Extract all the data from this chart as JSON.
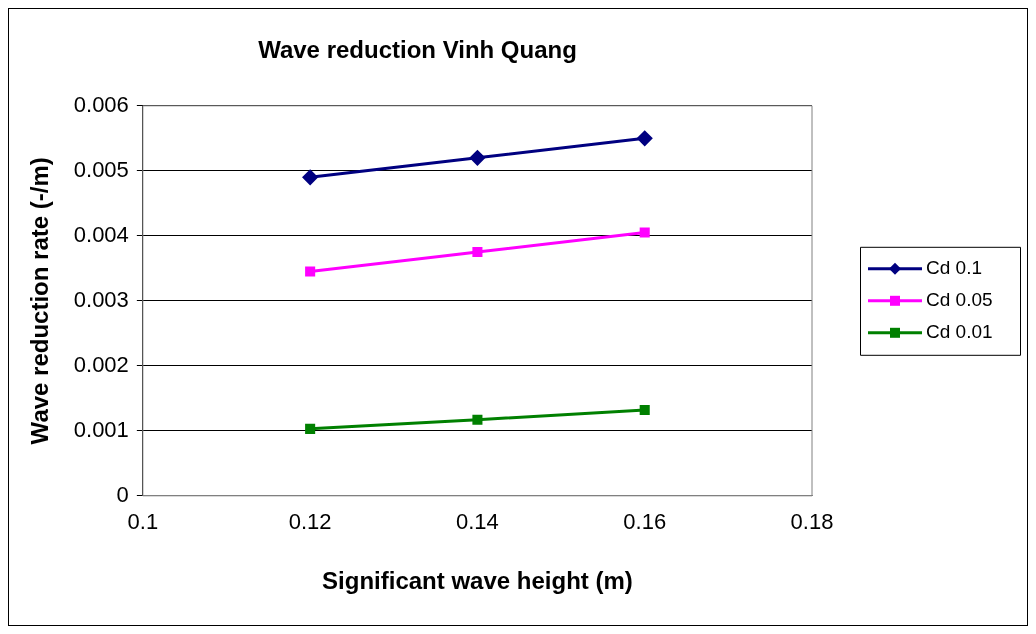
{
  "chart_data": {
    "type": "line",
    "title": "Wave reduction Vinh Quang",
    "xlabel": "Significant wave height (m)",
    "ylabel": "Wave reduction rate (-/m)",
    "x": [
      0.12,
      0.14,
      0.16
    ],
    "series": [
      {
        "name": "Cd 0.1",
        "color": "#000080",
        "marker": "diamond",
        "values": [
          0.0049,
          0.0052,
          0.0055
        ]
      },
      {
        "name": "Cd 0.05",
        "color": "#ff00ff",
        "marker": "square",
        "values": [
          0.00345,
          0.00375,
          0.00405
        ]
      },
      {
        "name": "Cd 0.01",
        "color": "#008000",
        "marker": "square",
        "values": [
          0.00103,
          0.00117,
          0.00132
        ]
      }
    ],
    "xlim": [
      0.1,
      0.18
    ],
    "xticks": [
      0.1,
      0.12,
      0.14,
      0.16,
      0.18
    ],
    "ylim": [
      0,
      0.006
    ],
    "yticks": [
      0,
      0.001,
      0.002,
      0.003,
      0.004,
      0.005,
      0.006
    ],
    "grid": "y",
    "legend": "right",
    "line_style": "solid"
  }
}
